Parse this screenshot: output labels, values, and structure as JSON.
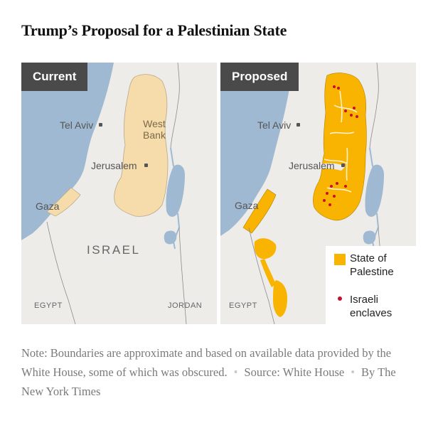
{
  "title": "Trump’s Proposal for a Palestinian State",
  "colors": {
    "sea": "#9fb9d2",
    "land": "#eeece8",
    "current_palestinian_areas": "#f6dcaa",
    "state_of_palestine": "#f8b400",
    "israeli_enclaves": "#c8102e",
    "tab_background": "#4a4a4a"
  },
  "panels": {
    "current": {
      "heading": "Current",
      "labels": {
        "tel_aviv": "Tel Aviv",
        "west_bank": "West\nBank",
        "jerusalem": "Jerusalem",
        "gaza": "Gaza",
        "israel": "ISRAEL",
        "egypt": "EGYPT",
        "jordan": "JORDAN"
      }
    },
    "proposed": {
      "heading": "Proposed",
      "labels": {
        "tel_aviv": "Tel Aviv",
        "jerusalem": "Jerusalem",
        "gaza": "Gaza",
        "egypt": "EGYPT"
      },
      "legend": {
        "state_of_palestine": "State of\nPalestine",
        "israeli_enclaves": "Israeli\nenclaves"
      }
    }
  },
  "note": {
    "text": "Note: Boundaries are approximate and based on available data provided by the White House, some of which was obscured.",
    "source": "Source: White House",
    "credit": "By The New York Times"
  }
}
